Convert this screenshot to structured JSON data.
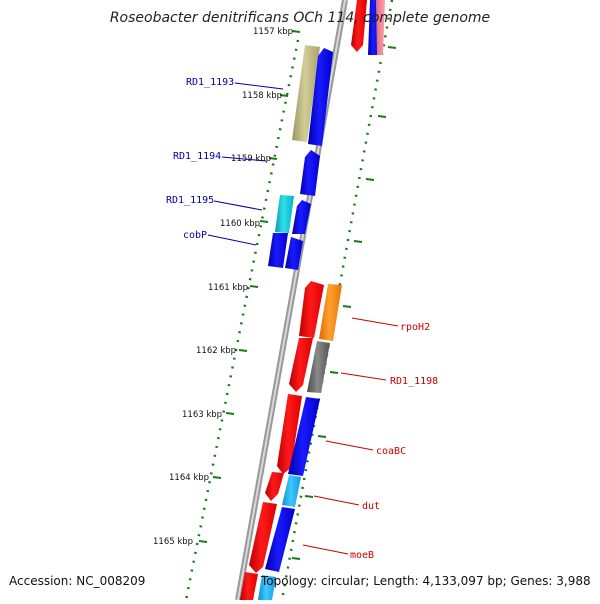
{
  "title": "Roseobacter denitrificans OCh 114, complete genome",
  "accession": "Accession: NC_008209",
  "topology": "Topology: circular; Length: 4,133,097 bp; Genes: 3,988",
  "colors": {
    "minus_strand_label": "#0000aa",
    "plus_strand_label": "#cc0000",
    "tick_marks": "#1a7a1a",
    "backbone": "#888888"
  },
  "ticks": [
    "1157 kbp",
    "1158 kbp",
    "1159 kbp",
    "1160 kbp",
    "1161 kbp",
    "1162 kbp",
    "1163 kbp",
    "1164 kbp",
    "1165 kbp"
  ],
  "genes_left": [
    {
      "name": "RD1_1193"
    },
    {
      "name": "RD1_1194"
    },
    {
      "name": "RD1_1195"
    },
    {
      "name": "cobP"
    }
  ],
  "genes_right": [
    {
      "name": "rpoH2"
    },
    {
      "name": "RD1_1198"
    },
    {
      "name": "coaBC"
    },
    {
      "name": "dut"
    },
    {
      "name": "moeB"
    }
  ]
}
